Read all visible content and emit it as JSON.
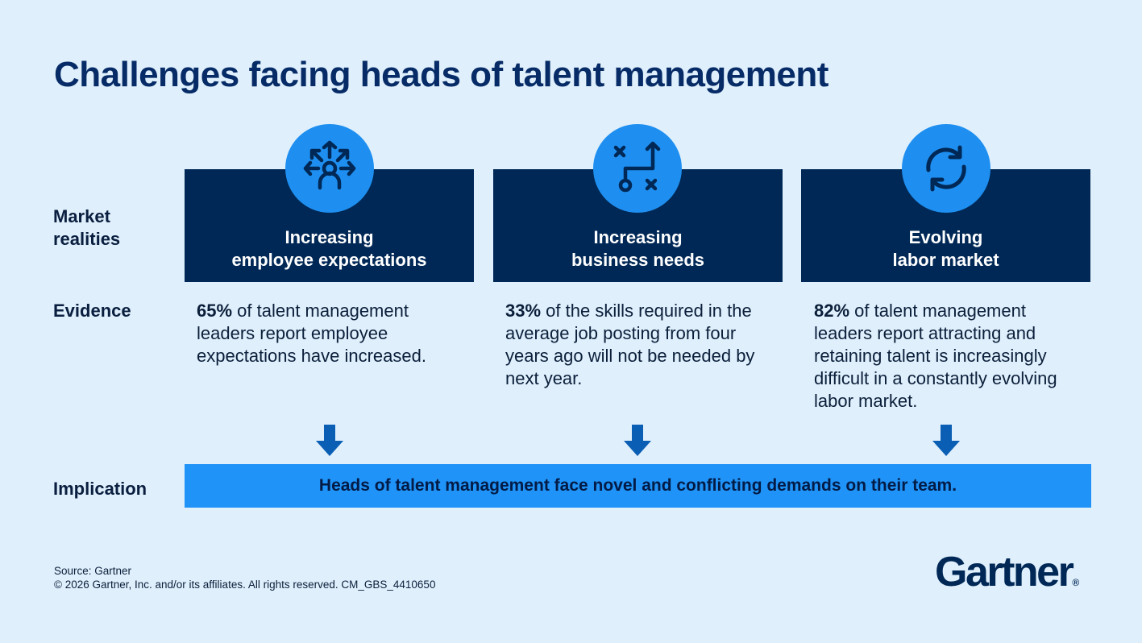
{
  "title": "Challenges facing heads of talent management",
  "row_labels": {
    "market": "Market\nrealities",
    "evidence": "Evidence",
    "implication": "Implication"
  },
  "columns": [
    {
      "icon": "people-arrows-icon",
      "heading": "Increasing\nemployee expectations",
      "evidence_pct": "65%",
      "evidence_text": " of talent management leaders report employee expectations have increased."
    },
    {
      "icon": "strategy-play-icon",
      "heading": "Increasing\nbusiness needs",
      "evidence_pct": "33%",
      "evidence_text": " of the skills required in the average job posting from four years ago will not be needed by next year."
    },
    {
      "icon": "refresh-cycle-icon",
      "heading": "Evolving\nlabor market",
      "evidence_pct": "82%",
      "evidence_text": " of talent management leaders report attracting and retaining talent is increasingly difficult in a constantly evolving labor market."
    }
  ],
  "implication": "Heads of talent management face novel and conflicting demands on their team.",
  "footer": {
    "source": "Source: Gartner",
    "copyright": "© 2026 Gartner, Inc. and/or its affiliates. All rights reserved. CM_GBS_4410650"
  },
  "logo": {
    "text": "Gartner",
    "mark": "®"
  },
  "colors": {
    "background": "#dfeffc",
    "navy": "#002856",
    "blue": "#1e8ff0",
    "arrow": "#0a5fb4"
  }
}
